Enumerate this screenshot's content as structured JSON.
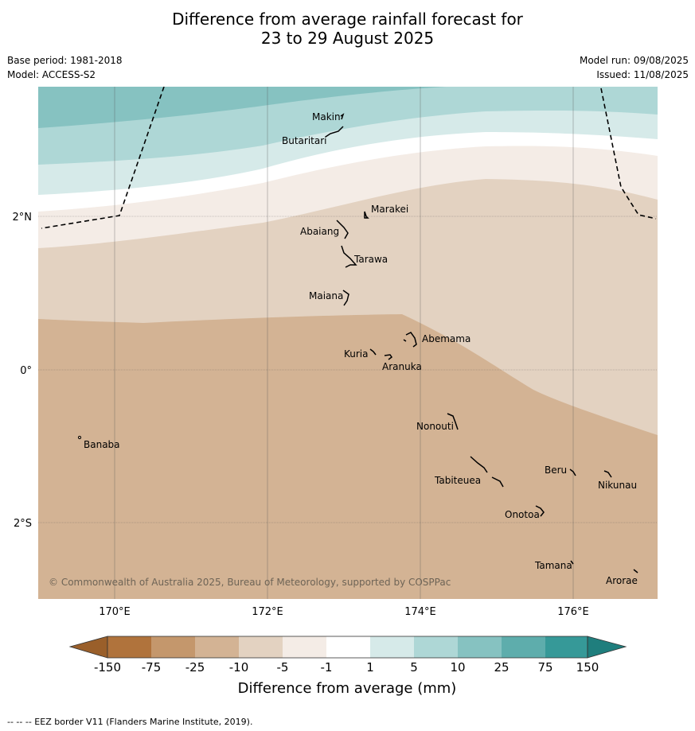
{
  "title": {
    "line1": "Difference from average rainfall forecast for",
    "line2": "23 to 29 August 2025"
  },
  "meta": {
    "base_period": "Base period: 1981-2018",
    "model": "Model: ACCESS-S2",
    "model_run": "Model run: 09/08/2025",
    "issued": "Issued: 11/08/2025"
  },
  "map": {
    "lon_ticks": [
      "170°E",
      "172°E",
      "174°E",
      "176°E"
    ],
    "lat_ticks": [
      "2°N",
      "0°",
      "2°S"
    ],
    "copyright": "© Commonwealth of Australia 2025, Bureau of Meteorology, supported by COSPPac",
    "places": [
      {
        "name": "Makin"
      },
      {
        "name": "Butaritari"
      },
      {
        "name": "Marakei"
      },
      {
        "name": "Abaiang"
      },
      {
        "name": "Tarawa"
      },
      {
        "name": "Maiana"
      },
      {
        "name": "Abemama"
      },
      {
        "name": "Kuria"
      },
      {
        "name": "Aranuka"
      },
      {
        "name": "Banaba"
      },
      {
        "name": "Nonouti"
      },
      {
        "name": "Beru"
      },
      {
        "name": "Nikunau"
      },
      {
        "name": "Tabiteuea"
      },
      {
        "name": "Onotoa"
      },
      {
        "name": "Tamana"
      },
      {
        "name": "Arorae"
      }
    ]
  },
  "colorbar": {
    "label": "Difference from average (mm)",
    "ticks": [
      "-150",
      "-75",
      "-25",
      "-10",
      "-5",
      "-1",
      "1",
      "5",
      "10",
      "25",
      "75",
      "150"
    ],
    "colors": {
      "lt_-150": "#9a5f2a",
      "-150_-75": "#b0733c",
      "-75_-25": "#c4976c",
      "-25_-10": "#d3b394",
      "-10_-5": "#e3d2c1",
      "-5_-1": "#f4ece6",
      "-1_1": "#ffffff",
      "1_5": "#d6eae9",
      "5_10": "#aed7d6",
      "10_25": "#86c2c1",
      "25_75": "#5eadac",
      "75_150": "#369998",
      "gt_150": "#1f7e7d"
    }
  },
  "footer": {
    "legend": "--  --  -- EEZ border V11 (Flanders Marine Institute, 2019)."
  }
}
